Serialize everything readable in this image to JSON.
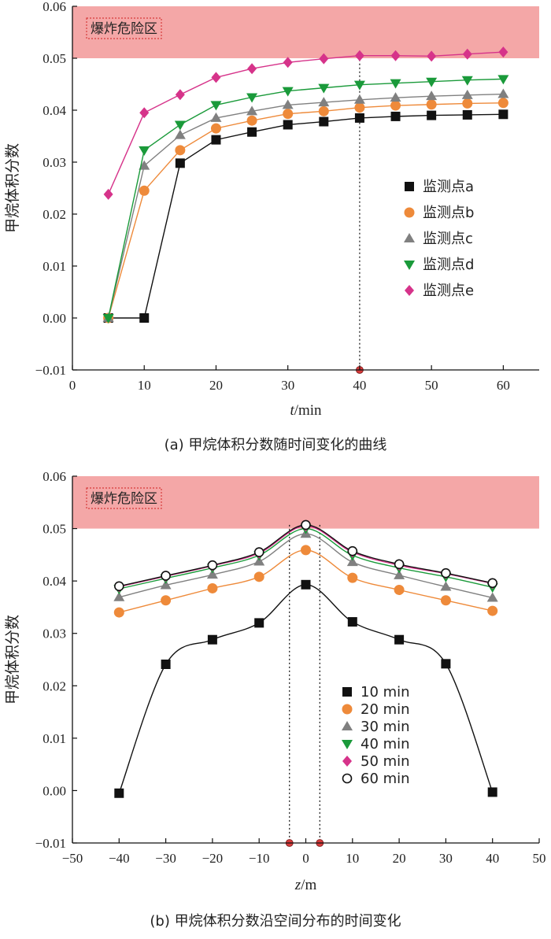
{
  "chart_data": [
    {
      "type": "line",
      "caption": "(a) 甲烷体积分数随时间变化的曲线",
      "xlabel_var": "t",
      "xlabel_unit": "/min",
      "ylabel": "甲烷体积分数",
      "danger_zone_label": "爆炸危险区",
      "danger_zone_range": [
        0.05,
        0.06
      ],
      "xlim": [
        0,
        65
      ],
      "ylim": [
        -0.01,
        0.06
      ],
      "xticks": [
        "0",
        "10",
        "20",
        "30",
        "40",
        "50",
        "60"
      ],
      "yticks": [
        "−0.01",
        "0.00",
        "0.01",
        "0.02",
        "0.03",
        "0.04",
        "0.05",
        "0.06"
      ],
      "reference_x": [
        40
      ],
      "legend_position": "right",
      "series": [
        {
          "name": "监测点a",
          "color": "#111111",
          "marker": "square",
          "x": [
            5,
            10,
            15,
            20,
            25,
            30,
            35,
            40,
            45,
            50,
            55,
            60
          ],
          "values": [
            0.0,
            0.0,
            0.0298,
            0.0343,
            0.0358,
            0.0372,
            0.0378,
            0.0385,
            0.0388,
            0.039,
            0.0391,
            0.0392
          ]
        },
        {
          "name": "监测点b",
          "color": "#ee8a3a",
          "marker": "circle",
          "x": [
            5,
            10,
            15,
            20,
            25,
            30,
            35,
            40,
            45,
            50,
            55,
            60
          ],
          "values": [
            0.0,
            0.0245,
            0.0323,
            0.0365,
            0.038,
            0.0393,
            0.0398,
            0.0405,
            0.0409,
            0.0411,
            0.0413,
            0.0414
          ]
        },
        {
          "name": "监测点c",
          "color": "#808080",
          "marker": "triangle-up",
          "x": [
            5,
            10,
            15,
            20,
            25,
            30,
            35,
            40,
            45,
            50,
            55,
            60
          ],
          "values": [
            0.0,
            0.0293,
            0.0352,
            0.0385,
            0.0398,
            0.041,
            0.0415,
            0.042,
            0.0424,
            0.0427,
            0.0429,
            0.0431
          ]
        },
        {
          "name": "监测点d",
          "color": "#1a9a3a",
          "marker": "triangle-down",
          "x": [
            5,
            10,
            15,
            20,
            25,
            30,
            35,
            40,
            45,
            50,
            55,
            60
          ],
          "values": [
            0.0,
            0.0323,
            0.0372,
            0.041,
            0.0425,
            0.0437,
            0.0443,
            0.0449,
            0.0452,
            0.0455,
            0.0458,
            0.046
          ]
        },
        {
          "name": "监测点e",
          "color": "#d6338a",
          "marker": "diamond",
          "x": [
            5,
            10,
            15,
            20,
            25,
            30,
            35,
            40,
            45,
            50,
            55,
            60
          ],
          "values": [
            0.0238,
            0.0395,
            0.043,
            0.0463,
            0.048,
            0.0492,
            0.0499,
            0.0505,
            0.0505,
            0.0504,
            0.0508,
            0.0512
          ]
        }
      ]
    },
    {
      "type": "line",
      "caption": "(b) 甲烷体积分数沿空间分布的时间变化",
      "xlabel_var": "z",
      "xlabel_unit": "/m",
      "ylabel": "甲烷体积分数",
      "danger_zone_label": "爆炸危险区",
      "danger_zone_range": [
        0.05,
        0.06
      ],
      "xlim": [
        -50,
        50
      ],
      "ylim": [
        -0.01,
        0.06
      ],
      "xticks": [
        "−50",
        "−40",
        "−30",
        "−20",
        "−10",
        "0",
        "10",
        "20",
        "30",
        "40",
        "50"
      ],
      "yticks": [
        "−0.01",
        "0.00",
        "0.01",
        "0.02",
        "0.03",
        "0.04",
        "0.05",
        "0.06"
      ],
      "reference_x": [
        -3.5,
        3
      ],
      "legend_position": "lower-right",
      "series": [
        {
          "name": "10 min",
          "color": "#111111",
          "marker": "square",
          "x": [
            -40,
            -30,
            -20,
            -10,
            0,
            10,
            20,
            30,
            40
          ],
          "values": [
            -0.0005,
            0.0241,
            0.0288,
            0.032,
            0.0393,
            0.0322,
            0.0288,
            0.0242,
            -0.0003
          ]
        },
        {
          "name": "20 min",
          "color": "#ee8a3a",
          "marker": "circle",
          "x": [
            -40,
            -30,
            -20,
            -10,
            0,
            10,
            20,
            30,
            40
          ],
          "values": [
            0.034,
            0.0363,
            0.0386,
            0.0408,
            0.0459,
            0.0406,
            0.0383,
            0.0363,
            0.0343
          ]
        },
        {
          "name": "30 min",
          "color": "#808080",
          "marker": "triangle-up",
          "x": [
            -40,
            -30,
            -20,
            -10,
            0,
            10,
            20,
            30,
            40
          ],
          "values": [
            0.0369,
            0.0392,
            0.0412,
            0.0437,
            0.049,
            0.0436,
            0.0411,
            0.0389,
            0.0368
          ]
        },
        {
          "name": "40 min",
          "color": "#1a9a3a",
          "marker": "triangle-down",
          "x": [
            -40,
            -30,
            -20,
            -10,
            0,
            10,
            20,
            30,
            40
          ],
          "values": [
            0.0385,
            0.0405,
            0.0425,
            0.0449,
            0.05,
            0.0449,
            0.0425,
            0.0408,
            0.0388
          ]
        },
        {
          "name": "50 min",
          "color": "#d6338a",
          "marker": "diamond",
          "x": [
            -40,
            -30,
            -20,
            -10,
            0,
            10,
            20,
            30,
            40
          ],
          "values": [
            0.0389,
            0.0409,
            0.0429,
            0.0453,
            0.0505,
            0.0455,
            0.043,
            0.0414,
            0.0395
          ]
        },
        {
          "name": "60 min",
          "color": "#111111",
          "marker": "circle-open",
          "x": [
            -40,
            -30,
            -20,
            -10,
            0,
            10,
            20,
            30,
            40
          ],
          "values": [
            0.039,
            0.041,
            0.043,
            0.0455,
            0.0507,
            0.0457,
            0.0432,
            0.0415,
            0.0396
          ]
        }
      ]
    }
  ]
}
